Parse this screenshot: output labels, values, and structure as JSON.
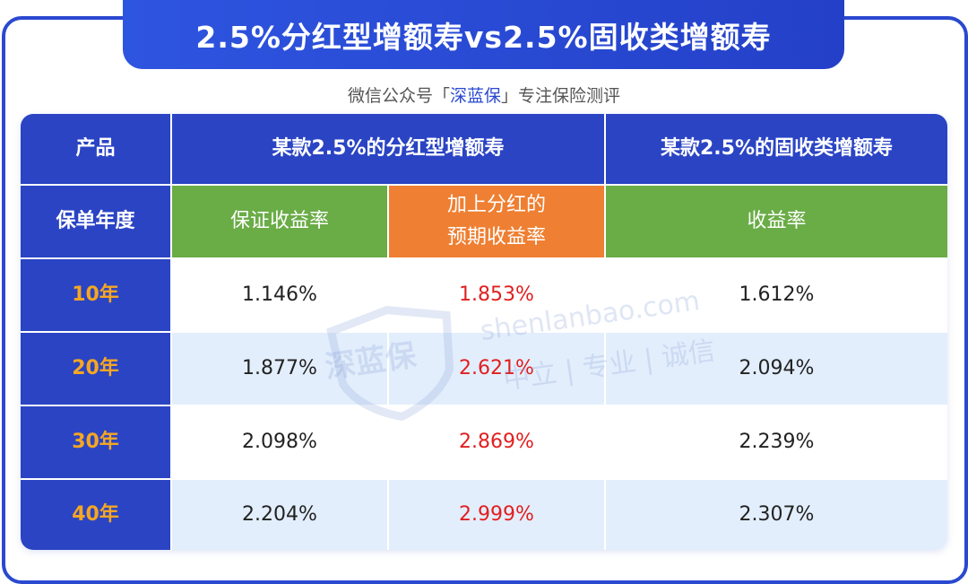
{
  "header": {
    "title": "2.5%分红型增额寿vs2.5%固收类增额寿",
    "subtitle": {
      "prefix": "微信公众号「",
      "brand": "深蓝保",
      "suffix": "」专注保险测评"
    }
  },
  "watermark": {
    "logo": "深蓝保",
    "site": "shenlanbao.com",
    "slogan": "中立 | 专业 | 诚信"
  },
  "table": {
    "header": [
      [
        "产品",
        "某款2.5%的分红型增额寿",
        "某款2.5%的固收类增额寿"
      ],
      [
        "保单年度",
        "保证收益率",
        [
          "加上分红的",
          "预期收益率"
        ],
        "收益率"
      ]
    ],
    "rows": [
      [
        "10年",
        "1.146%",
        "1.853%",
        "1.612%"
      ],
      [
        "20年",
        "1.877%",
        "2.621%",
        "2.094%"
      ],
      [
        "30年",
        "2.098%",
        "2.869%",
        "2.239%"
      ],
      [
        "40年",
        "2.204%",
        "2.999%",
        "2.307%"
      ]
    ]
  }
}
